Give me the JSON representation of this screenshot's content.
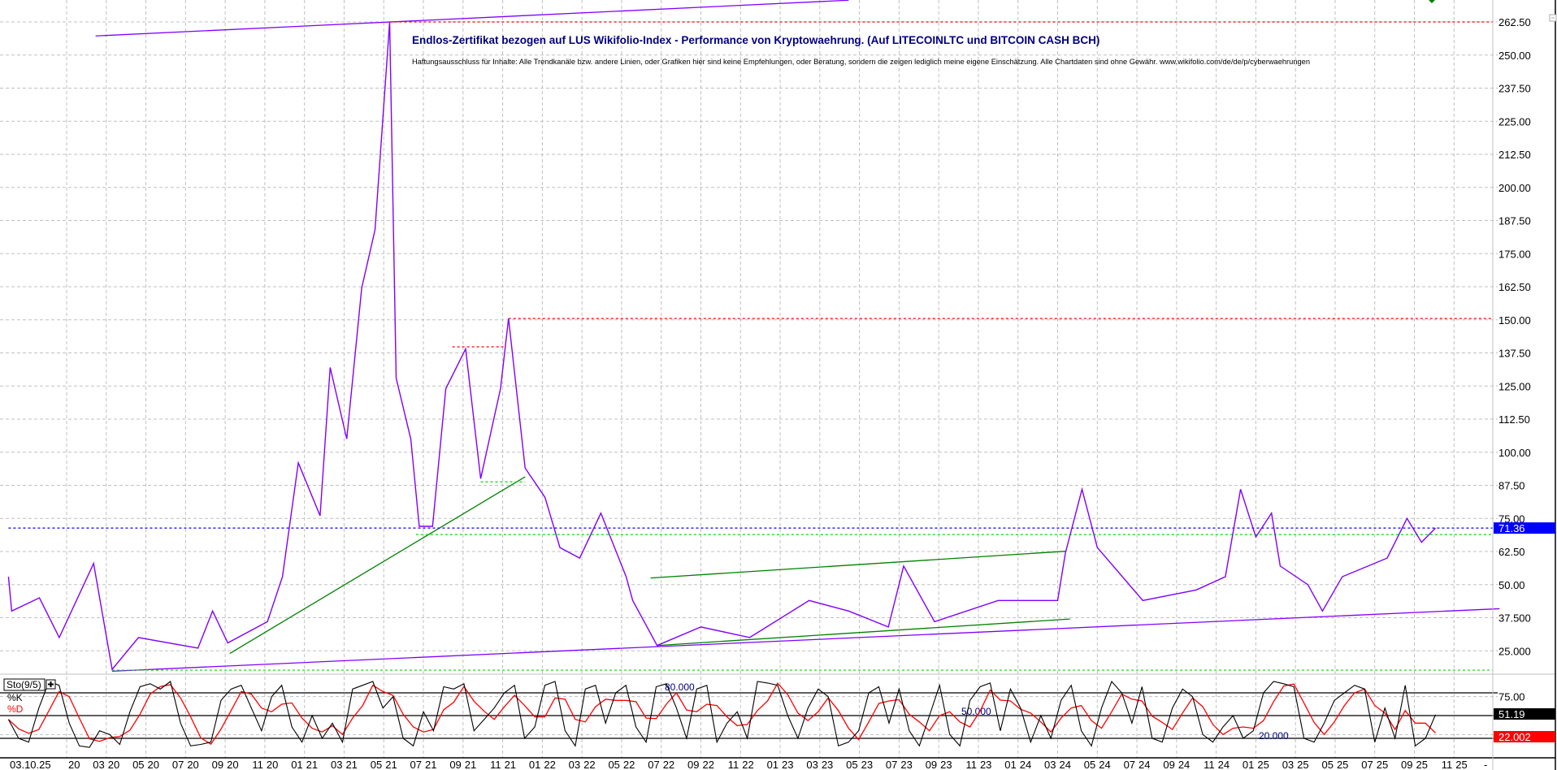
{
  "chart_data": [
    {
      "type": "line",
      "title": "Endlos-Zertifikat bezogen auf LUS Wikifolio-Index - Performance von Kryptowaehrung. (Auf LITECOINLTC und BITCOIN CASH BCH)",
      "subtitle": "Haftungsausschluss für Inhalte: Alle Trendkanäle bzw. andere Linien, oder Grafiken hier sind keine Empfehlungen, oder Beratung, sondern die zeigen lediglich meine eigene Einschätzung. Alle Chartdaten sind ohne Gewähr. www.wikifolio.com/de/de/p/cyberwaehrungen",
      "ylim": [
        17,
        268
      ],
      "yticks": [
        "262.50",
        "250.00",
        "237.50",
        "225.00",
        "212.50",
        "200.00",
        "187.50",
        "175.00",
        "162.50",
        "150.00",
        "137.50",
        "125.00",
        "112.50",
        "100.00",
        "87.50",
        "75.00",
        "62.50",
        "50.00",
        "37.500",
        "25.000"
      ],
      "ytick_values": [
        262.5,
        250,
        237.5,
        225,
        212.5,
        200,
        187.5,
        175,
        162.5,
        150,
        137.5,
        125,
        112.5,
        100,
        87.5,
        75,
        62.5,
        50,
        37.5,
        25
      ],
      "grid": true,
      "axis_side": "right",
      "last_value": "71.36",
      "last_value_color": "#0000ff",
      "series": [
        {
          "color": "#8000ff",
          "points": [
            [
              "2019-10-03",
              53
            ],
            [
              "2019-10-08",
              40
            ],
            [
              "2019-11-20",
              45
            ],
            [
              "2019-12-20",
              30
            ],
            [
              "2020-02-12",
              58
            ],
            [
              "2020-03-10",
              18
            ],
            [
              "2020-04-20",
              30
            ],
            [
              "2020-07-20",
              26
            ],
            [
              "2020-08-12",
              40
            ],
            [
              "2020-09-05",
              28
            ],
            [
              "2020-11-05",
              36
            ],
            [
              "2020-11-28",
              53
            ],
            [
              "2020-12-22",
              96
            ],
            [
              "2021-01-25",
              76
            ],
            [
              "2021-02-10",
              132
            ],
            [
              "2021-03-05",
              105
            ],
            [
              "2021-03-28",
              162
            ],
            [
              "2021-04-18",
              184
            ],
            [
              "2021-05-10",
              262.5
            ],
            [
              "2021-05-20",
              128
            ],
            [
              "2021-06-12",
              105
            ],
            [
              "2021-06-25",
              72
            ],
            [
              "2021-07-15",
              72
            ],
            [
              "2021-08-05",
              124
            ],
            [
              "2021-09-05",
              139
            ],
            [
              "2021-09-28",
              90
            ],
            [
              "2021-10-28",
              124
            ],
            [
              "2021-11-10",
              150.5
            ],
            [
              "2021-12-05",
              94
            ],
            [
              "2022-01-05",
              83
            ],
            [
              "2022-01-28",
              64
            ],
            [
              "2022-02-28",
              60
            ],
            [
              "2022-03-30",
              77
            ],
            [
              "2022-05-08",
              53
            ],
            [
              "2022-05-18",
              44
            ],
            [
              "2022-06-25",
              27
            ],
            [
              "2022-09-01",
              34
            ],
            [
              "2022-11-15",
              30
            ],
            [
              "2023-02-15",
              44
            ],
            [
              "2023-04-15",
              40
            ],
            [
              "2023-06-15",
              34
            ],
            [
              "2023-07-08",
              57
            ],
            [
              "2023-08-25",
              36
            ],
            [
              "2023-12-01",
              44
            ],
            [
              "2024-03-01",
              44
            ],
            [
              "2024-03-13",
              62
            ],
            [
              "2024-04-08",
              86
            ],
            [
              "2024-05-01",
              64
            ],
            [
              "2024-07-10",
              44
            ],
            [
              "2024-10-01",
              48
            ],
            [
              "2024-11-15",
              53
            ],
            [
              "2024-12-08",
              86
            ],
            [
              "2025-01-01",
              68
            ],
            [
              "2025-01-25",
              77
            ],
            [
              "2025-02-08",
              57
            ],
            [
              "2025-03-20",
              50
            ],
            [
              "2025-04-12",
              40
            ],
            [
              "2025-05-12",
              53
            ],
            [
              "2025-07-20",
              60
            ],
            [
              "2025-08-20",
              75
            ],
            [
              "2025-09-12",
              66
            ],
            [
              "2025-10-03",
              71.36
            ]
          ]
        }
      ],
      "annotations": [
        {
          "kind": "trendline",
          "color": "#8000ff",
          "from": [
            "2020-02-15",
            257.2
          ],
          "to": [
            "2023-04-15",
            270.7
          ]
        },
        {
          "kind": "trendline",
          "color": "#8000ff",
          "from": [
            "2020-03-10",
            17.3
          ],
          "to": [
            "2026-01-10",
            40.9
          ]
        },
        {
          "kind": "trendline",
          "color": "#008000",
          "from": [
            "2020-09-08",
            24
          ],
          "to": [
            "2021-12-05",
            90.7
          ]
        },
        {
          "kind": "trendline",
          "color": "#008000",
          "from": [
            "2022-06-15",
            52.5
          ],
          "to": [
            "2024-03-13",
            62.6
          ]
        },
        {
          "kind": "trendline",
          "color": "#008000",
          "from": [
            "2022-06-25",
            27
          ],
          "to": [
            "2024-03-20",
            37
          ]
        },
        {
          "kind": "hline",
          "color": "#ff0000",
          "value": 262.5,
          "from": "2021-05-10"
        },
        {
          "kind": "hline",
          "color": "#ff0000",
          "value": 150.5,
          "from": "2021-11-10"
        },
        {
          "kind": "hline",
          "color": "#ff0000",
          "value": 139.8,
          "from": "2021-08-15",
          "to": "2021-11-05"
        },
        {
          "kind": "hline",
          "color": "#00dd00",
          "value": 68.9,
          "from": "2021-06-20"
        },
        {
          "kind": "hline",
          "color": "#00dd00",
          "value": 88.8,
          "from": "2021-09-28",
          "to": "2021-12-05"
        },
        {
          "kind": "hline",
          "color": "#00dd00",
          "value": 17.7,
          "from": "2020-03-10"
        },
        {
          "kind": "hline",
          "color": "#0000ff",
          "value": 71.36,
          "from": "2019-10-03"
        }
      ]
    },
    {
      "type": "line",
      "title": "Sto(9/5)",
      "ylim": [
        0,
        100
      ],
      "yticks": [
        "75.00"
      ],
      "levels": [
        {
          "value": 80,
          "label": "80.000"
        },
        {
          "value": 50,
          "label": "50.000"
        },
        {
          "value": 20,
          "label": "20.000"
        }
      ],
      "series": [
        {
          "name": "%K",
          "color": "#000000",
          "last": "51.19",
          "values": [
            45,
            20,
            15,
            60,
            95,
            90,
            40,
            10,
            8,
            30,
            25,
            12,
            55,
            88,
            92,
            85,
            95,
            40,
            10,
            12,
            15,
            70,
            85,
            90,
            60,
            30,
            75,
            90,
            35,
            15,
            50,
            20,
            40,
            15,
            85,
            90,
            95,
            60,
            75,
            20,
            10,
            55,
            30,
            88,
            85,
            92,
            30,
            45,
            60,
            80,
            90,
            20,
            35,
            90,
            95,
            30,
            10,
            85,
            90,
            40,
            80,
            90,
            35,
            15,
            88,
            92,
            60,
            20,
            85,
            90,
            15,
            40,
            55,
            20,
            95,
            93,
            90,
            50,
            20,
            60,
            85,
            75,
            10,
            15,
            30,
            80,
            88,
            40,
            85,
            30,
            10,
            50,
            90,
            25,
            10,
            70,
            88,
            93,
            30,
            85,
            60,
            15,
            50,
            20,
            70,
            90,
            30,
            10,
            60,
            95,
            80,
            40,
            88,
            20,
            15,
            60,
            85,
            75,
            25,
            15,
            35,
            50,
            20,
            30,
            80,
            95,
            92,
            88,
            20,
            15,
            40,
            70,
            80,
            90,
            85,
            15,
            60,
            20,
            90,
            10,
            20,
            51.19
          ]
        },
        {
          "name": "%D",
          "color": "#ff0000",
          "last": "22.002"
        }
      ]
    }
  ],
  "x_axis": {
    "current_date": "03.10.25",
    "ticks": [
      {
        "date": "2020-01",
        "month": "",
        "year": "20"
      },
      {
        "date": "2020-03",
        "month": "03",
        "year": "20"
      },
      {
        "date": "2020-05",
        "month": "05",
        "year": "20"
      },
      {
        "date": "2020-07",
        "month": "07",
        "year": "20"
      },
      {
        "date": "2020-09",
        "month": "09",
        "year": "20"
      },
      {
        "date": "2020-11",
        "month": "11",
        "year": "20"
      },
      {
        "date": "2021-01",
        "month": "01",
        "year": "21"
      },
      {
        "date": "2021-03",
        "month": "03",
        "year": "21"
      },
      {
        "date": "2021-05",
        "month": "05",
        "year": "21"
      },
      {
        "date": "2021-07",
        "month": "07",
        "year": "21"
      },
      {
        "date": "2021-09",
        "month": "09",
        "year": "21"
      },
      {
        "date": "2021-11",
        "month": "11",
        "year": "21"
      },
      {
        "date": "2022-01",
        "month": "01",
        "year": "22"
      },
      {
        "date": "2022-03",
        "month": "03",
        "year": "22"
      },
      {
        "date": "2022-05",
        "month": "05",
        "year": "22"
      },
      {
        "date": "2022-07",
        "month": "07",
        "year": "22"
      },
      {
        "date": "2022-09",
        "month": "09",
        "year": "22"
      },
      {
        "date": "2022-11",
        "month": "11",
        "year": "22"
      },
      {
        "date": "2023-01",
        "month": "01",
        "year": "23"
      },
      {
        "date": "2023-03",
        "month": "03",
        "year": "23"
      },
      {
        "date": "2023-05",
        "month": "05",
        "year": "23"
      },
      {
        "date": "2023-07",
        "month": "07",
        "year": "23"
      },
      {
        "date": "2023-09",
        "month": "09",
        "year": "23"
      },
      {
        "date": "2023-11",
        "month": "11",
        "year": "23"
      },
      {
        "date": "2024-01",
        "month": "01",
        "year": "24"
      },
      {
        "date": "2024-03",
        "month": "03",
        "year": "24"
      },
      {
        "date": "2024-05",
        "month": "05",
        "year": "24"
      },
      {
        "date": "2024-07",
        "month": "07",
        "year": "24"
      },
      {
        "date": "2024-09",
        "month": "09",
        "year": "24"
      },
      {
        "date": "2024-11",
        "month": "11",
        "year": "24"
      },
      {
        "date": "2025-01",
        "month": "01",
        "year": "25"
      },
      {
        "date": "2025-03",
        "month": "03",
        "year": "25"
      },
      {
        "date": "2025-05",
        "month": "05",
        "year": "25"
      },
      {
        "date": "2025-07",
        "month": "07",
        "year": "25"
      },
      {
        "date": "2025-09",
        "month": "09",
        "year": "25"
      },
      {
        "date": "2025-11",
        "month": "11",
        "year": "25"
      }
    ],
    "end_marker": "-"
  },
  "ui": {
    "collapse_icon": "minus-box-icon",
    "indicator_add_icon": "plus-box-icon",
    "k_label": "%K",
    "d_label": "%D",
    "indicator_label": "Sto(9/5)",
    "title_color": "#000080"
  }
}
